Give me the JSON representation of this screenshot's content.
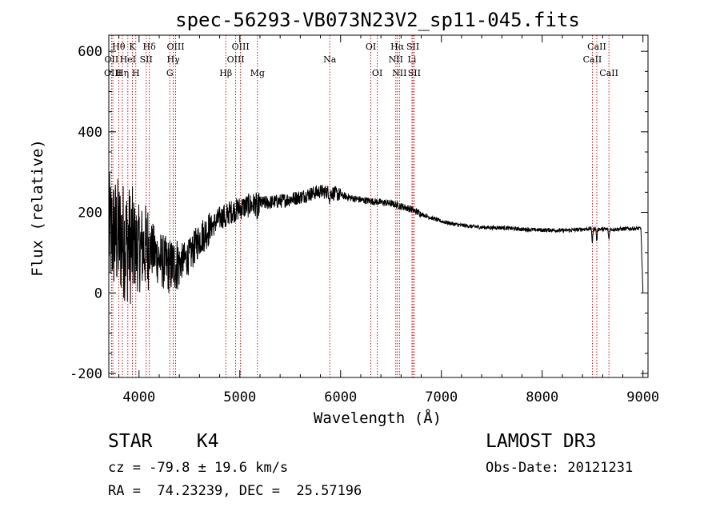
{
  "chart_data": {
    "type": "line",
    "title": "spec-56293-VB073N23V2_sp11-045.fits",
    "xlabel": "Wavelength (Å)",
    "ylabel": "Flux (relative)",
    "xlim": [
      3700,
      9050
    ],
    "ylim": [
      -210,
      640
    ],
    "xticks": [
      4000,
      5000,
      6000,
      7000,
      8000,
      9000
    ],
    "yticks": [
      -200,
      0,
      200,
      400,
      600
    ],
    "lines": [
      {
        "label": "Hθ",
        "wave": 3798,
        "row": 0
      },
      {
        "label": "OII",
        "wave": 3727,
        "row": 1
      },
      {
        "label": "OIII",
        "wave": 3740,
        "row": 2
      },
      {
        "label": "Hη",
        "wave": 3835,
        "row": 2
      },
      {
        "label": "K",
        "wave": 3934,
        "row": 0
      },
      {
        "label": "HeI",
        "wave": 3889,
        "row": 1
      },
      {
        "label": "H",
        "wave": 3968,
        "row": 2
      },
      {
        "label": "SII",
        "wave": 4071,
        "row": 1
      },
      {
        "label": "Hδ",
        "wave": 4102,
        "row": 0
      },
      {
        "label": "OIII",
        "wave": 4363,
        "row": 0
      },
      {
        "label": "Hγ",
        "wave": 4340,
        "row": 1
      },
      {
        "label": "G",
        "wave": 4305,
        "row": 2
      },
      {
        "label": "Hβ",
        "wave": 4861,
        "row": 2
      },
      {
        "label": "OIII",
        "wave": 5007,
        "row": 0
      },
      {
        "label": "OIII",
        "wave": 4959,
        "row": 1
      },
      {
        "label": "Mg",
        "wave": 5175,
        "row": 2
      },
      {
        "label": "Na",
        "wave": 5893,
        "row": 1
      },
      {
        "label": "OI",
        "wave": 6300,
        "row": 0
      },
      {
        "label": "OI",
        "wave": 6364,
        "row": 2
      },
      {
        "label": "Hα",
        "wave": 6563,
        "row": 0
      },
      {
        "label": "NII",
        "wave": 6548,
        "row": 1
      },
      {
        "label": "NII",
        "wave": 6584,
        "row": 2
      },
      {
        "label": "SII",
        "wave": 6717,
        "row": 0
      },
      {
        "label": "Li",
        "wave": 6708,
        "row": 1
      },
      {
        "label": "SII",
        "wave": 6731,
        "row": 2
      },
      {
        "label": "CaII",
        "wave": 8542,
        "row": 0
      },
      {
        "label": "CaII",
        "wave": 8498,
        "row": 1
      },
      {
        "label": "CaII",
        "wave": 8662,
        "row": 2
      }
    ],
    "continuum": [
      [
        3700,
        150
      ],
      [
        3800,
        140
      ],
      [
        3900,
        120
      ],
      [
        4000,
        110
      ],
      [
        4100,
        115
      ],
      [
        4200,
        85
      ],
      [
        4300,
        65
      ],
      [
        4400,
        75
      ],
      [
        4500,
        90
      ],
      [
        4600,
        135
      ],
      [
        4700,
        160
      ],
      [
        4800,
        185
      ],
      [
        4900,
        200
      ],
      [
        5000,
        210
      ],
      [
        5100,
        218
      ],
      [
        5200,
        222
      ],
      [
        5300,
        225
      ],
      [
        5400,
        228
      ],
      [
        5500,
        233
      ],
      [
        5600,
        238
      ],
      [
        5700,
        246
      ],
      [
        5800,
        252
      ],
      [
        5900,
        250
      ],
      [
        6000,
        243
      ],
      [
        6100,
        236
      ],
      [
        6200,
        231
      ],
      [
        6300,
        228
      ],
      [
        6400,
        225
      ],
      [
        6500,
        222
      ],
      [
        6600,
        215
      ],
      [
        6700,
        208
      ],
      [
        6800,
        196
      ],
      [
        6900,
        186
      ],
      [
        7000,
        178
      ],
      [
        7100,
        172
      ],
      [
        7200,
        168
      ],
      [
        7300,
        165
      ],
      [
        7400,
        163
      ],
      [
        7500,
        162
      ],
      [
        7600,
        162
      ],
      [
        7700,
        160
      ],
      [
        7800,
        158
      ],
      [
        7900,
        157
      ],
      [
        8000,
        156
      ],
      [
        8100,
        156
      ],
      [
        8200,
        155
      ],
      [
        8300,
        156
      ],
      [
        8400,
        158
      ],
      [
        8500,
        160
      ],
      [
        8600,
        158
      ],
      [
        8700,
        158
      ],
      [
        8800,
        159
      ],
      [
        8900,
        160
      ],
      [
        8980,
        160
      ],
      [
        9000,
        0
      ]
    ]
  },
  "info": {
    "object": "STAR    K4",
    "survey": "LAMOST DR3",
    "cz": "cz = -79.8 ± 19.6 km/s",
    "obs_date": "Obs-Date: 20121231",
    "radec": "RA =  74.23239, DEC =  25.57196"
  }
}
